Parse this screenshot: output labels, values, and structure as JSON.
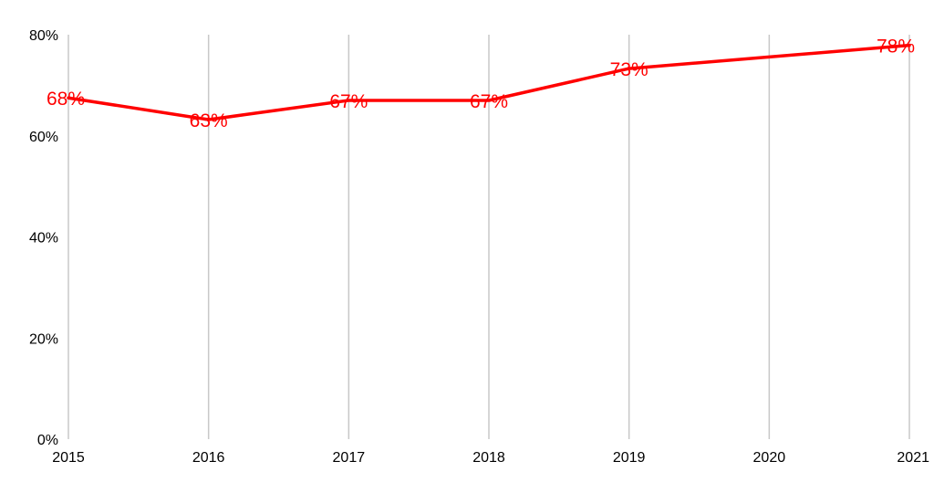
{
  "chart_data": {
    "type": "line",
    "title": "",
    "xlabel": "",
    "ylabel": "",
    "x": [
      2015,
      2016,
      2017,
      2018,
      2019,
      2020,
      2021
    ],
    "x_tick_labels": [
      "2015",
      "2016",
      "2017",
      "2018",
      "2019",
      "2020",
      "2021"
    ],
    "ylim": [
      0,
      80
    ],
    "y_ticks": [
      0,
      20,
      40,
      60,
      80
    ],
    "y_tick_labels": [
      "0%",
      "20%",
      "40%",
      "60%",
      "80%"
    ],
    "grid": "vertical",
    "legend": "none",
    "series": [
      {
        "color": "#ff0000",
        "values": [
          67.5,
          63.2,
          67,
          67,
          73.3,
          75.6,
          77.9
        ],
        "data_labels": [
          "68%",
          "63%",
          "67%",
          "67%",
          "73%",
          null,
          "78%"
        ]
      }
    ]
  }
}
